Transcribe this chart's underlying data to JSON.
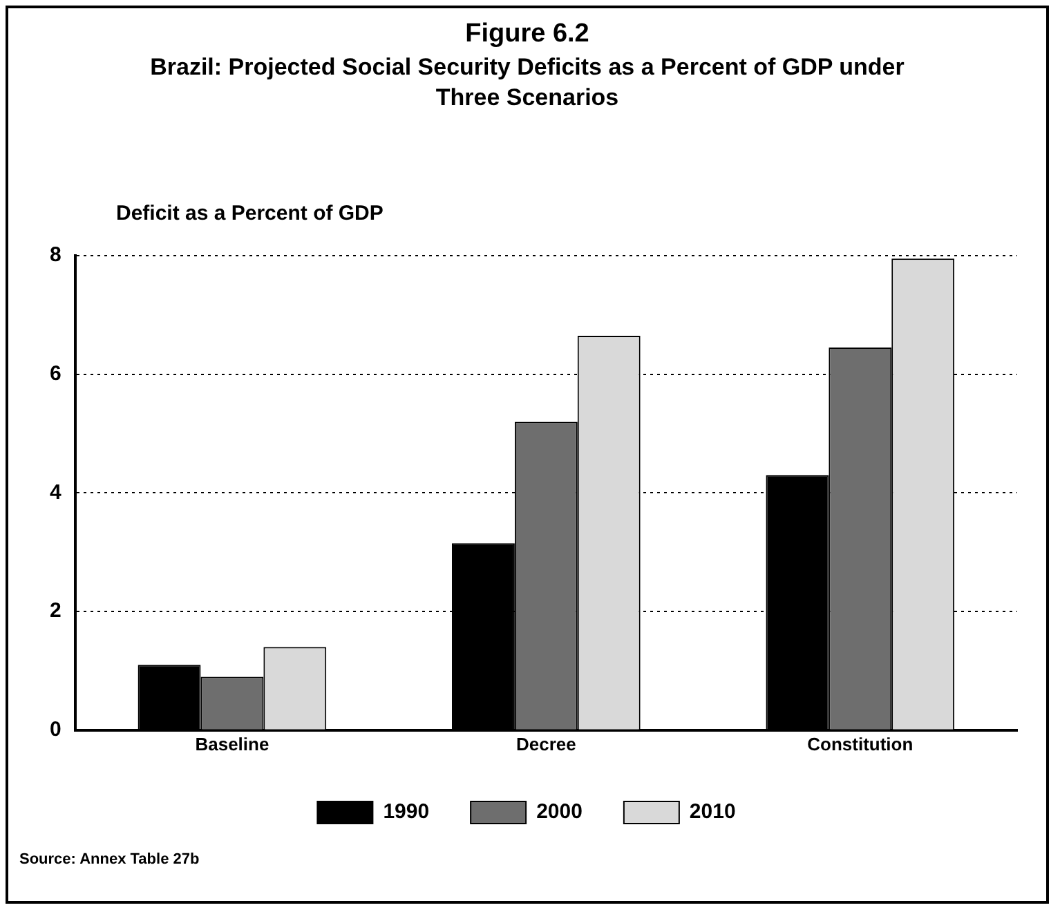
{
  "chart_data": {
    "type": "bar",
    "title": "Figure 6.2",
    "subtitle": "Brazil:  Projected Social Security Deficits as a Percent of GDP under Three Scenarios",
    "ylabel": "Deficit as a Percent of GDP",
    "categories": [
      "Baseline",
      "Decree",
      "Constitution"
    ],
    "series": [
      {
        "name": "1990",
        "color": "#000000",
        "values": [
          1.1,
          3.15,
          4.3
        ]
      },
      {
        "name": "2000",
        "color": "#6e6e6e",
        "values": [
          0.9,
          5.2,
          6.45
        ]
      },
      {
        "name": "2010",
        "color": "#d9d9d9",
        "values": [
          1.4,
          6.65,
          7.95
        ]
      }
    ],
    "ylim": [
      0,
      8
    ],
    "yticks": [
      0,
      2,
      4,
      6,
      8
    ],
    "grid": "y",
    "legend": "bottom",
    "annotations": [
      "Source:  Annex Table 27b"
    ]
  }
}
